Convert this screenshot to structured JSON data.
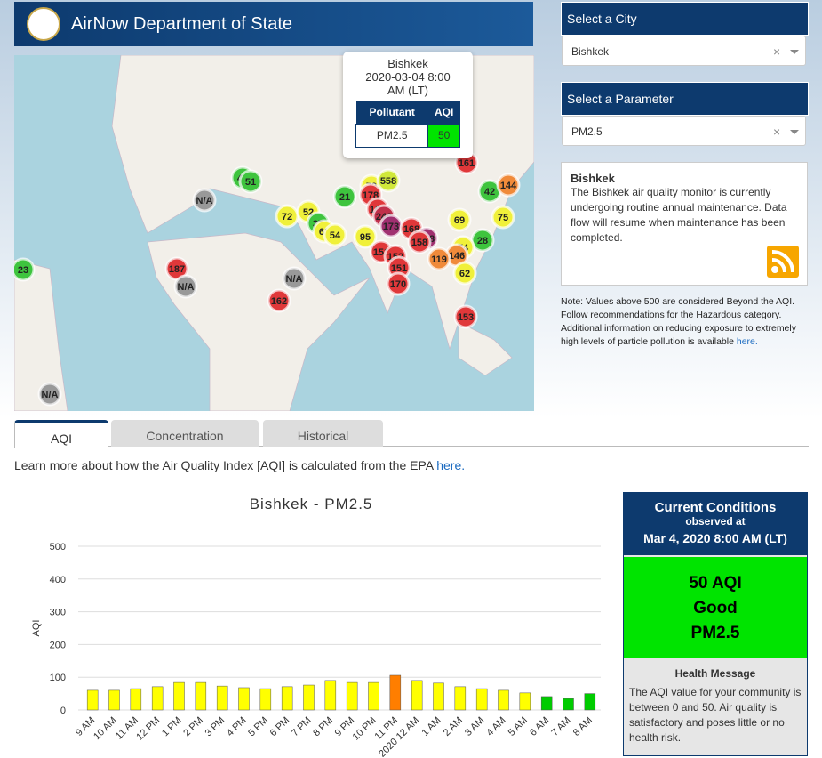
{
  "header": {
    "title": "AirNow Department of State"
  },
  "map": {
    "markers": [
      {
        "label": "48",
        "color": "#3ec43e"
      },
      {
        "label": "51",
        "color": "#3ec43e"
      },
      {
        "label": "N/A",
        "color": "#999999"
      },
      {
        "label": "21",
        "color": "#3ec43e"
      },
      {
        "label": "79",
        "color": "#f0f03a"
      },
      {
        "label": "558",
        "color": "#d0e83a"
      },
      {
        "label": "178",
        "color": "#e0383a"
      },
      {
        "label": "169",
        "color": "#e0383a"
      },
      {
        "label": "240",
        "color": "#c0304a"
      },
      {
        "label": "173",
        "color": "#a03070"
      },
      {
        "label": "161",
        "color": "#e0383a"
      },
      {
        "label": "42",
        "color": "#3ec43e"
      },
      {
        "label": "144",
        "color": "#f08a3a"
      },
      {
        "label": "72",
        "color": "#f0f03a"
      },
      {
        "label": "52",
        "color": "#f0f03a"
      },
      {
        "label": "37",
        "color": "#3ec43e"
      },
      {
        "label": "68",
        "color": "#f0f03a"
      },
      {
        "label": "54",
        "color": "#f0f03a"
      },
      {
        "label": "95",
        "color": "#f0f03a"
      },
      {
        "label": "69",
        "color": "#f0f03a"
      },
      {
        "label": "75",
        "color": "#f0f03a"
      },
      {
        "label": "168",
        "color": "#e0383a"
      },
      {
        "label": "138",
        "color": "#a03070"
      },
      {
        "label": "158",
        "color": "#e0383a"
      },
      {
        "label": "28",
        "color": "#3ec43e"
      },
      {
        "label": "74",
        "color": "#f0f03a"
      },
      {
        "label": "146",
        "color": "#f08a3a"
      },
      {
        "label": "119",
        "color": "#f08a3a"
      },
      {
        "label": "151",
        "color": "#e0383a"
      },
      {
        "label": "152",
        "color": "#e0383a"
      },
      {
        "label": "151",
        "color": "#e0383a"
      },
      {
        "label": "170",
        "color": "#e0383a"
      },
      {
        "label": "62",
        "color": "#f0f03a"
      },
      {
        "label": "187",
        "color": "#e0383a"
      },
      {
        "label": "N/A",
        "color": "#999999"
      },
      {
        "label": "N/A",
        "color": "#999999"
      },
      {
        "label": "162",
        "color": "#e0383a"
      },
      {
        "label": "153",
        "color": "#e0383a"
      },
      {
        "label": "23",
        "color": "#3ec43e"
      },
      {
        "label": "N/A",
        "color": "#999999"
      }
    ],
    "popup": {
      "city": "Bishkek",
      "time": "2020-03-04 8:00 AM (LT)",
      "col1": "Pollutant",
      "col2": "AQI",
      "pollutant": "PM2.5",
      "aqi": "50"
    }
  },
  "city_select": {
    "heading": "Select a City",
    "value": "Bishkek",
    "clear": "×"
  },
  "parameter_select": {
    "heading": "Select a Parameter",
    "value": "PM2.5",
    "clear": "×"
  },
  "info": {
    "title": "Bishkek",
    "text": "The Bishkek air quality monitor is currently undergoing routine annual maintenance. Data flow will resume when maintenance has been completed."
  },
  "note": {
    "text": "Note: Values above 500 are considered Beyond the AQI. Follow recommendations for the Hazardous category. Additional information on reducing exposure to extremely high levels of particle pollution is available ",
    "link": "here."
  },
  "tabs": [
    "AQI",
    "Concentration",
    "Historical"
  ],
  "learn": {
    "text": "Learn more about how the Air Quality Index [AQI] is calculated from the EPA ",
    "link": "here."
  },
  "chart_data": {
    "type": "bar",
    "title": "Bishkek - PM2.5",
    "y_label": "AQI",
    "categories": [
      "9 AM",
      "10 AM",
      "11 AM",
      "12 PM",
      "1 PM",
      "2 PM",
      "3 PM",
      "4 PM",
      "5 PM",
      "6 PM",
      "7 PM",
      "8 PM",
      "9 PM",
      "10 PM",
      "11 PM",
      "2020 12 AM",
      "1 AM",
      "2 AM",
      "3 AM",
      "4 AM",
      "5 AM",
      "6 AM",
      "7 AM",
      "8 AM"
    ],
    "values": [
      60,
      60,
      65,
      71,
      84,
      84,
      73,
      68,
      65,
      71,
      76,
      90,
      84,
      84,
      106,
      90,
      82,
      71,
      65,
      60,
      52,
      41,
      35,
      50
    ],
    "colors": [
      "#ffff00",
      "#ffff00",
      "#ffff00",
      "#ffff00",
      "#ffff00",
      "#ffff00",
      "#ffff00",
      "#ffff00",
      "#ffff00",
      "#ffff00",
      "#ffff00",
      "#ffff00",
      "#ffff00",
      "#ffff00",
      "#ff7e00",
      "#ffff00",
      "#ffff00",
      "#ffff00",
      "#ffff00",
      "#ffff00",
      "#ffff00",
      "#00cc00",
      "#00cc00",
      "#00cc00"
    ],
    "ylim": [
      0,
      500
    ],
    "yticks": [
      0,
      100,
      200,
      300,
      400,
      500
    ],
    "grid": true
  },
  "conditions": {
    "title": "Current Conditions",
    "observed": "observed at",
    "time": "Mar 4, 2020 8:00 AM (LT)",
    "aqi": "50 AQI",
    "category": "Good",
    "parameter": "PM2.5",
    "health_title": "Health Message",
    "health_text": "The AQI value for your community is between 0 and 50. Air quality is satisfactory and poses little or no health risk."
  }
}
